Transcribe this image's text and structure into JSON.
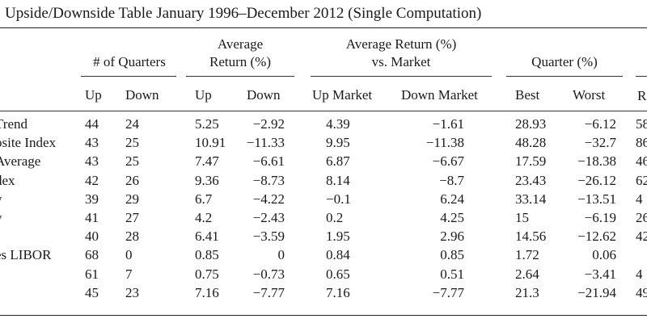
{
  "title": "Upside/Downside Table January 1996–December 2012 (Single Computation)",
  "headers": {
    "quarters": "# of Quarters",
    "avg_return": [
      "Average",
      "Return (%)"
    ],
    "avg_vs_market": [
      "Average Return (%)",
      "vs. Market"
    ],
    "quarter_pct": "Quarter (%)",
    "partial_col": "R"
  },
  "subheaders": [
    "Up",
    "Down",
    "Up",
    "Down",
    "Up Market",
    "Down Market",
    "Best",
    "Worst"
  ],
  "rows": [
    {
      "label": "Trend",
      "up": "44",
      "down": "24",
      "ret_up": "5.25",
      "ret_down": "−2.92",
      "mkt_up": "4.39",
      "mkt_down": "−1.61",
      "best": "28.93",
      "worst": "−6.12",
      "partial": "58"
    },
    {
      "label": "osite Index",
      "up": "43",
      "down": "25",
      "ret_up": "10.91",
      "ret_down": "−11.33",
      "mkt_up": "9.95",
      "mkt_down": "−11.38",
      "best": "48.28",
      "worst": "−32.7",
      "partial": "86"
    },
    {
      "label": "Average",
      "up": "43",
      "down": "25",
      "ret_up": "7.47",
      "ret_down": "−6.61",
      "mkt_up": "6.87",
      "mkt_down": "−6.67",
      "best": "17.59",
      "worst": "−18.38",
      "partial": "46"
    },
    {
      "label": "dex",
      "up": "42",
      "down": "26",
      "ret_up": "9.36",
      "ret_down": "−8.73",
      "mkt_up": "8.14",
      "mkt_down": "−8.7",
      "best": "23.43",
      "worst": "−26.12",
      "partial": "62"
    },
    {
      "label": "y",
      "up": "39",
      "down": "29",
      "ret_up": "6.7",
      "ret_down": "−4.22",
      "mkt_up": "−0.1",
      "mkt_down": "6.24",
      "best": "33.14",
      "worst": "−13.51",
      "partial": "4"
    },
    {
      "label": "y",
      "up": "41",
      "down": "27",
      "ret_up": "4.2",
      "ret_down": "−2.43",
      "mkt_up": "0.2",
      "mkt_down": "4.25",
      "best": "15",
      "worst": "−6.19",
      "partial": "26"
    },
    {
      "label": "",
      "up": "40",
      "down": "28",
      "ret_up": "6.41",
      "ret_down": "−3.59",
      "mkt_up": "1.95",
      "mkt_down": "2.96",
      "best": "14.56",
      "worst": "−12.62",
      "partial": "42"
    },
    {
      "label": "es LIBOR",
      "up": "68",
      "down": "0",
      "ret_up": "0.85",
      "ret_down": "0",
      "mkt_up": "0.84",
      "mkt_down": "0.85",
      "best": "1.72",
      "worst": "0.06",
      "partial": ""
    },
    {
      "label": "",
      "up": "61",
      "down": "7",
      "ret_up": "0.75",
      "ret_down": "−0.73",
      "mkt_up": "0.65",
      "mkt_down": "0.51",
      "best": "2.64",
      "worst": "−3.41",
      "partial": "4"
    },
    {
      "label": "",
      "up": "45",
      "down": "23",
      "ret_up": "7.16",
      "ret_down": "−7.77",
      "mkt_up": "7.16",
      "mkt_down": "−7.77",
      "best": "21.3",
      "worst": "−21.94",
      "partial": "49"
    }
  ]
}
